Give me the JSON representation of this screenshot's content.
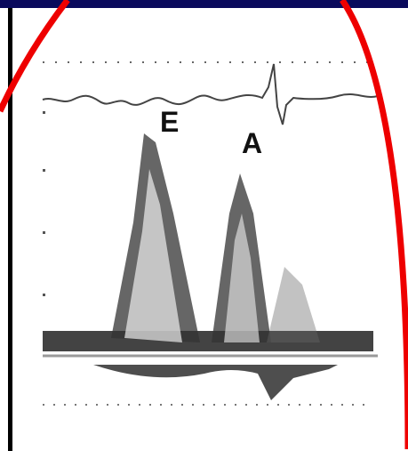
{
  "annotations": [
    {
      "label": "E"
    },
    {
      "label": "A"
    }
  ]
}
